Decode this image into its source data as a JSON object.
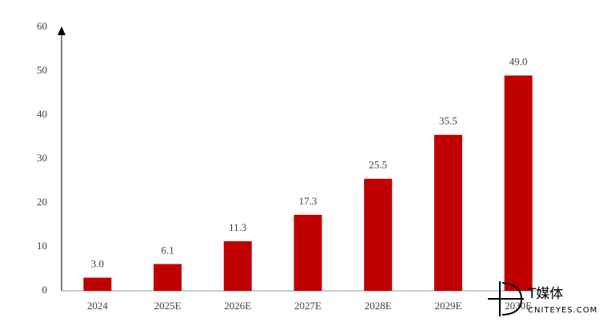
{
  "chart_data": {
    "type": "bar",
    "categories": [
      "2024",
      "2025E",
      "2026E",
      "2027E",
      "2028E",
      "2029E",
      "2030E"
    ],
    "values": [
      3.0,
      6.1,
      11.3,
      17.3,
      25.5,
      35.5,
      49.0
    ],
    "value_labels": [
      "3.0",
      "6.1",
      "11.3",
      "17.3",
      "25.5",
      "35.5",
      "49.0"
    ],
    "color": "#c00000",
    "ylim": [
      0,
      60
    ],
    "yticks": [
      0,
      10,
      20,
      30,
      40,
      50,
      60
    ],
    "grid": false
  },
  "watermark": {
    "name": "T媒体",
    "site": "CNITEYES.COM"
  }
}
